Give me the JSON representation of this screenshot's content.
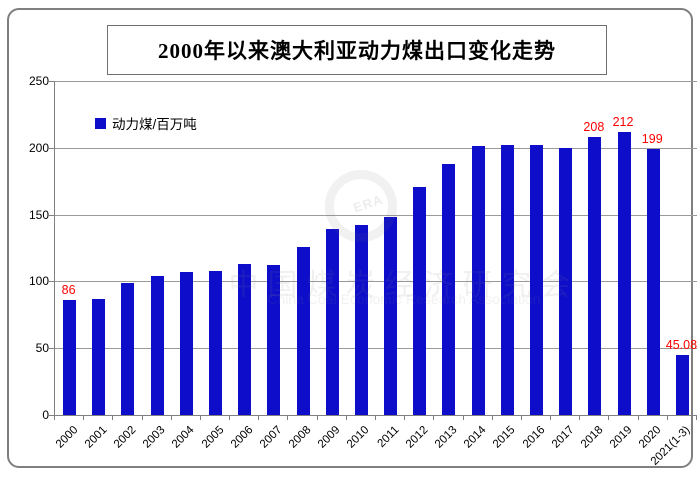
{
  "title": "2000年以来澳大利亚动力煤出口变化走势",
  "legend": {
    "label": "动力煤/百万吨"
  },
  "watermark": {
    "logo_text": "ERA",
    "cn": "中国煤炭经济研究会",
    "en": "China Coal Economic Research Association"
  },
  "colors": {
    "bar": "#0d0dca",
    "data_label": "#ff0000",
    "grid": "#9a9a9a",
    "axis": "#808080"
  },
  "chart_data": {
    "type": "bar",
    "title": "2000年以来澳大利亚动力煤出口变化走势",
    "series_name": "动力煤/百万吨",
    "xlabel": "",
    "ylabel": "百万吨",
    "ylim": [
      0,
      250
    ],
    "y_ticks": [
      250,
      200,
      150,
      100,
      50,
      0
    ],
    "grid": true,
    "legend_position": "top-left",
    "categories": [
      "2000",
      "2001",
      "2002",
      "2003",
      "2004",
      "2005",
      "2006",
      "2007",
      "2008",
      "2009",
      "2010",
      "2011",
      "2012",
      "2013",
      "2014",
      "2015",
      "2016",
      "2017",
      "2018",
      "2019",
      "2020",
      "2021(1-3)"
    ],
    "values": [
      86,
      87,
      99,
      104,
      107,
      108,
      113,
      112,
      126,
      139,
      142,
      148,
      171,
      188,
      201,
      202,
      202,
      200,
      208,
      212,
      199,
      45.08
    ],
    "data_labels": [
      "86",
      null,
      null,
      null,
      null,
      null,
      null,
      null,
      null,
      null,
      null,
      null,
      null,
      null,
      null,
      null,
      null,
      null,
      "208",
      "212",
      "199",
      "45.08"
    ]
  }
}
